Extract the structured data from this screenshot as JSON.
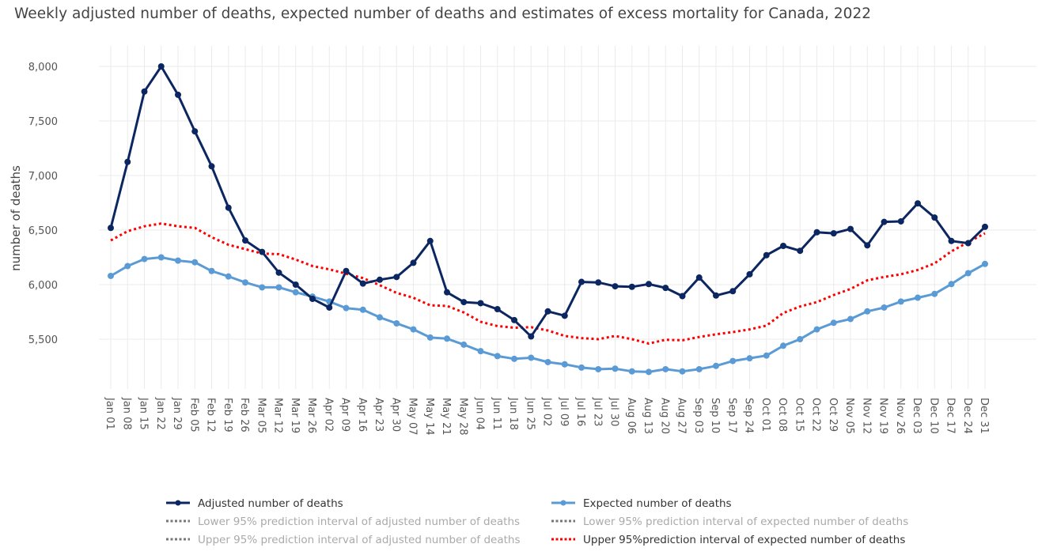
{
  "chart_data": {
    "type": "line",
    "title": "Weekly adjusted number of deaths, expected number of deaths and estimates of excess mortality for Canada, 2022",
    "xlabel": "",
    "ylabel": "number of deaths",
    "ylim": [
      5000,
      8200
    ],
    "yticks": [
      5500,
      6000,
      6500,
      7000,
      7500,
      8000
    ],
    "ytick_labels": [
      "5,500",
      "6,000",
      "6,500",
      "7,000",
      "7,500",
      "8,000"
    ],
    "grid": true,
    "legend_position": "bottom",
    "x": [
      "Jan 01",
      "Jan 08",
      "Jan 15",
      "Jan 22",
      "Jan 29",
      "Feb 05",
      "Feb 12",
      "Feb 19",
      "Feb 26",
      "Mar 05",
      "Mar 12",
      "Mar 19",
      "Mar 26",
      "Apr 02",
      "Apr 09",
      "Apr 16",
      "Apr 23",
      "Apr 30",
      "May 07",
      "May 14",
      "May 21",
      "May 28",
      "Jun 04",
      "Jun 11",
      "Jun 18",
      "Jun 25",
      "Jul 02",
      "Jul 09",
      "Jul 16",
      "Jul 23",
      "Jul 30",
      "Aug 06",
      "Aug 13",
      "Aug 20",
      "Aug 27",
      "Sep 03",
      "Sep 10",
      "Sep 17",
      "Sep 24",
      "Oct 01",
      "Oct 08",
      "Oct 15",
      "Oct 22",
      "Oct 29",
      "Nov 05",
      "Nov 12",
      "Nov 19",
      "Nov 26",
      "Dec 03",
      "Dec 10",
      "Dec 17",
      "Dec 24",
      "Dec 31"
    ],
    "series": [
      {
        "name": "Adjusted number of deaths",
        "color": "#0b2660",
        "style": "line+markers",
        "visible": true,
        "values": [
          6520,
          7125,
          7770,
          8000,
          7740,
          7405,
          7085,
          6705,
          6405,
          6300,
          6110,
          6000,
          5870,
          5790,
          6125,
          6010,
          6045,
          6070,
          6200,
          6400,
          5930,
          5840,
          5830,
          5775,
          5675,
          5525,
          5755,
          5715,
          6025,
          6020,
          5985,
          5980,
          6005,
          5970,
          5895,
          6065,
          5900,
          5940,
          6095,
          6270,
          6355,
          6310,
          6480,
          6470,
          6510,
          6360,
          6575,
          6580,
          6745,
          6615,
          6400,
          6380,
          6530
        ]
      },
      {
        "name": "Expected number of deaths",
        "color": "#5b9bd5",
        "style": "line+markers",
        "visible": true,
        "values": [
          6080,
          6170,
          6235,
          6250,
          6220,
          6205,
          6125,
          6075,
          6020,
          5975,
          5975,
          5930,
          5890,
          5845,
          5785,
          5770,
          5700,
          5645,
          5590,
          5515,
          5505,
          5450,
          5390,
          5345,
          5320,
          5330,
          5290,
          5270,
          5240,
          5225,
          5230,
          5205,
          5200,
          5225,
          5205,
          5225,
          5255,
          5300,
          5325,
          5350,
          5440,
          5500,
          5590,
          5650,
          5685,
          5755,
          5790,
          5845,
          5880,
          5915,
          6005,
          6105,
          6190
        ]
      },
      {
        "name": "Lower 95% prediction interval of adjusted number of deaths",
        "color": "#777777",
        "style": "dotted",
        "visible": false,
        "values": []
      },
      {
        "name": "Lower 95% prediction interval of expected number of deaths",
        "color": "#777777",
        "style": "dotted",
        "visible": false,
        "values": []
      },
      {
        "name": "Upper 95% prediction interval of adjusted number of deaths",
        "color": "#777777",
        "style": "dotted",
        "visible": false,
        "values": []
      },
      {
        "name": "Upper 95%prediction interval of expected number of deaths",
        "color": "#ff0000",
        "style": "dotted",
        "visible": true,
        "values": [
          6405,
          6490,
          6535,
          6560,
          6535,
          6520,
          6435,
          6365,
          6325,
          6285,
          6280,
          6230,
          6170,
          6140,
          6100,
          6060,
          5995,
          5925,
          5880,
          5810,
          5805,
          5745,
          5660,
          5620,
          5605,
          5610,
          5580,
          5530,
          5510,
          5500,
          5530,
          5500,
          5460,
          5495,
          5490,
          5520,
          5545,
          5565,
          5590,
          5625,
          5740,
          5800,
          5840,
          5905,
          5960,
          6040,
          6070,
          6095,
          6135,
          6195,
          6305,
          6390,
          6470
        ]
      }
    ]
  },
  "legend": {
    "items": [
      {
        "label": "Adjusted number of deaths",
        "active": true
      },
      {
        "label": "Expected number of deaths",
        "active": true
      },
      {
        "label": "Lower 95% prediction interval of adjusted number of deaths",
        "active": false
      },
      {
        "label": "Lower 95% prediction interval of expected number of deaths",
        "active": false
      },
      {
        "label": "Upper 95% prediction interval of adjusted number of deaths",
        "active": false
      },
      {
        "label": "Upper 95%prediction interval of expected number of deaths",
        "active": true
      }
    ]
  },
  "colors": {
    "grid": "#ebebeb",
    "tick_text": "#555555",
    "legend_active_text": "#333333",
    "legend_inactive_text": "#aaaaaa"
  }
}
